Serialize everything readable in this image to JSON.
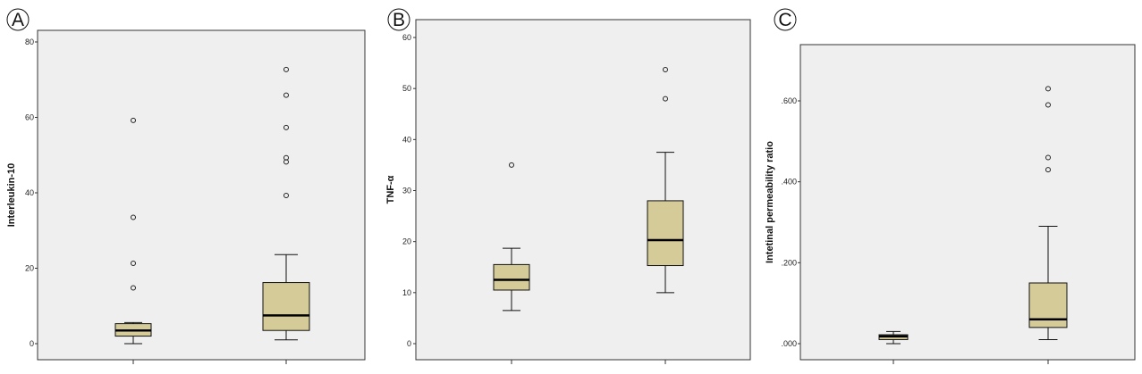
{
  "panels": [
    {
      "label": "A",
      "ylabel": "Interleukin-10",
      "ticks": [
        "0",
        "20",
        "40",
        "60",
        "80"
      ]
    },
    {
      "label": "B",
      "ylabel": "TNF-α",
      "ticks": [
        "0",
        "10",
        "20",
        "30",
        "40",
        "50",
        "60"
      ]
    },
    {
      "label": "C",
      "ylabel": "Intetinal permeability ratio",
      "ticks": [
        ".000",
        ".200",
        ".400",
        ".600"
      ]
    }
  ],
  "colors": {
    "box_fill": "#d4cb98",
    "plot_bg": "#efefef",
    "frame": "#333333"
  },
  "chart_data": [
    {
      "type": "box",
      "panel": "A",
      "ylabel": "Interleukin-10",
      "ylim": [
        0,
        80
      ],
      "yticks": [
        0,
        20,
        40,
        60,
        80
      ],
      "groups": [
        {
          "whisker_low": 0,
          "q1": 2,
          "median": 3.5,
          "q3": 5.3,
          "whisker_high": 5.6,
          "outliers": [
            14.8,
            21.3,
            33.5,
            59.2
          ]
        },
        {
          "whisker_low": 1,
          "q1": 3.5,
          "median": 7.5,
          "q3": 16.2,
          "whisker_high": 23.6,
          "outliers": [
            39.3,
            48.2,
            49.3,
            57.3,
            65.9,
            72.7
          ]
        }
      ]
    },
    {
      "type": "box",
      "panel": "B",
      "ylabel": "TNF-α",
      "ylim": [
        0,
        60
      ],
      "yticks": [
        0,
        10,
        20,
        30,
        40,
        50,
        60
      ],
      "groups": [
        {
          "whisker_low": 6.5,
          "q1": 10.5,
          "median": 12.5,
          "q3": 15.5,
          "whisker_high": 18.7,
          "outliers": [
            35
          ]
        },
        {
          "whisker_low": 10,
          "q1": 15.3,
          "median": 20.3,
          "q3": 28,
          "whisker_high": 37.5,
          "outliers": [
            48,
            53.7
          ]
        }
      ]
    },
    {
      "type": "box",
      "panel": "C",
      "ylabel": "Intetinal permeability ratio",
      "ylim": [
        0,
        0.6
      ],
      "yticks": [
        0,
        0.2,
        0.4,
        0.6
      ],
      "groups": [
        {
          "whisker_low": 0,
          "q1": 0.01,
          "median": 0.018,
          "q3": 0.022,
          "whisker_high": 0.03,
          "outliers": []
        },
        {
          "whisker_low": 0.01,
          "q1": 0.04,
          "median": 0.06,
          "q3": 0.15,
          "whisker_high": 0.29,
          "outliers": [
            0.43,
            0.46,
            0.59,
            0.63
          ]
        }
      ]
    }
  ]
}
